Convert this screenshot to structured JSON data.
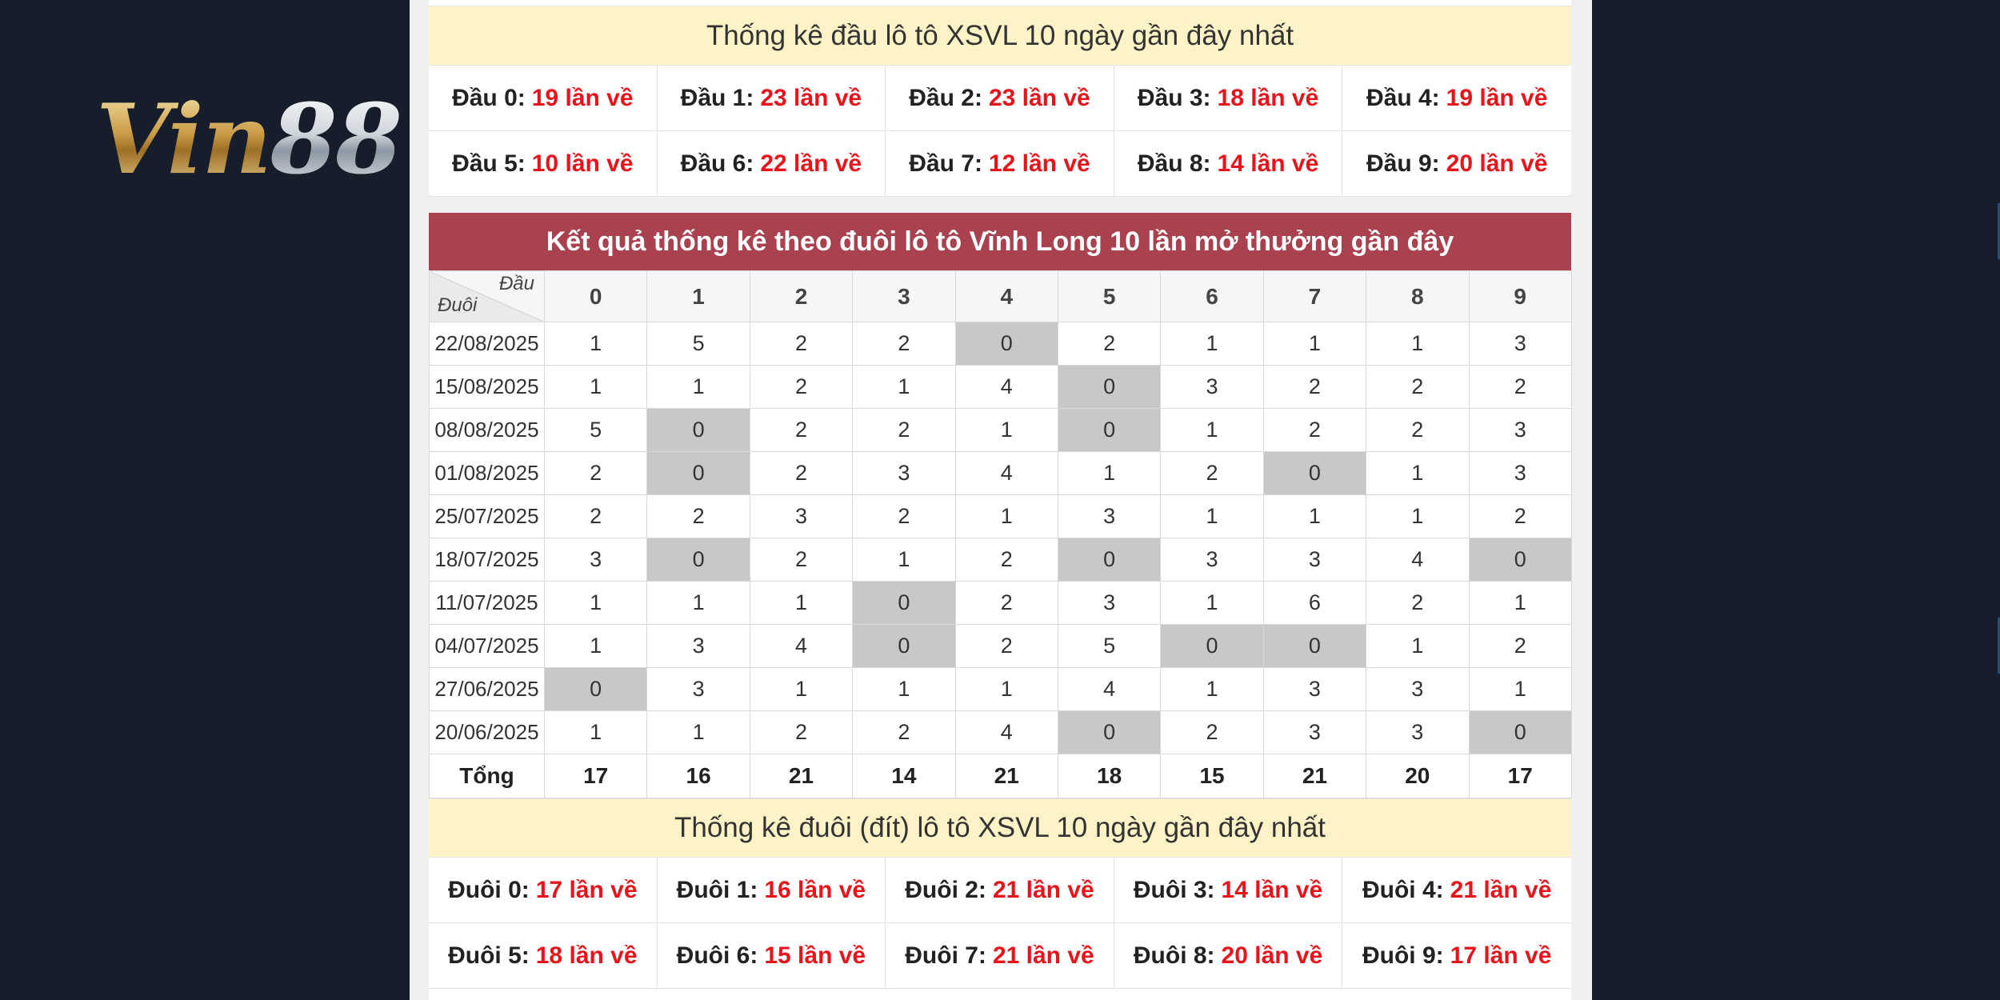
{
  "logo": {
    "text": "Vin",
    "number": "88"
  },
  "dau_stats": {
    "title": "Thống kê đầu lô tô XSVL 10 ngày gần đây nhất",
    "items": [
      {
        "label": "Đầu 0:",
        "value": "19 lần về"
      },
      {
        "label": "Đầu 1:",
        "value": "23 lần về"
      },
      {
        "label": "Đầu 2:",
        "value": "23 lần về"
      },
      {
        "label": "Đầu 3:",
        "value": "18 lần về"
      },
      {
        "label": "Đầu 4:",
        "value": "19 lần về"
      },
      {
        "label": "Đầu 5:",
        "value": "10 lần về"
      },
      {
        "label": "Đầu 6:",
        "value": "22 lần về"
      },
      {
        "label": "Đầu 7:",
        "value": "12 lần về"
      },
      {
        "label": "Đầu 8:",
        "value": "14 lần về"
      },
      {
        "label": "Đầu 9:",
        "value": "20 lần về"
      }
    ]
  },
  "duoi_table": {
    "title": "Kết quả thống kê theo đuôi lô tô Vĩnh Long 10 lần mở thưởng gần đây",
    "corner_dau": "Đầu",
    "corner_duoi": "Đuôi",
    "columns": [
      "0",
      "1",
      "2",
      "3",
      "4",
      "5",
      "6",
      "7",
      "8",
      "9"
    ],
    "rows": [
      {
        "date": "22/08/2025",
        "values": [
          "1",
          "5",
          "2",
          "2",
          "0",
          "2",
          "1",
          "1",
          "1",
          "3"
        ]
      },
      {
        "date": "15/08/2025",
        "values": [
          "1",
          "1",
          "2",
          "1",
          "4",
          "0",
          "3",
          "2",
          "2",
          "2"
        ]
      },
      {
        "date": "08/08/2025",
        "values": [
          "5",
          "0",
          "2",
          "2",
          "1",
          "0",
          "1",
          "2",
          "2",
          "3"
        ]
      },
      {
        "date": "01/08/2025",
        "values": [
          "2",
          "0",
          "2",
          "3",
          "4",
          "1",
          "2",
          "0",
          "1",
          "3"
        ]
      },
      {
        "date": "25/07/2025",
        "values": [
          "2",
          "2",
          "3",
          "2",
          "1",
          "3",
          "1",
          "1",
          "1",
          "2"
        ]
      },
      {
        "date": "18/07/2025",
        "values": [
          "3",
          "0",
          "2",
          "1",
          "2",
          "0",
          "3",
          "3",
          "4",
          "0"
        ]
      },
      {
        "date": "11/07/2025",
        "values": [
          "1",
          "1",
          "1",
          "0",
          "2",
          "3",
          "1",
          "6",
          "2",
          "1"
        ]
      },
      {
        "date": "04/07/2025",
        "values": [
          "1",
          "3",
          "4",
          "0",
          "2",
          "5",
          "0",
          "0",
          "1",
          "2"
        ]
      },
      {
        "date": "27/06/2025",
        "values": [
          "0",
          "3",
          "1",
          "1",
          "1",
          "4",
          "1",
          "3",
          "3",
          "1"
        ]
      },
      {
        "date": "20/06/2025",
        "values": [
          "1",
          "1",
          "2",
          "2",
          "4",
          "0",
          "2",
          "3",
          "3",
          "0"
        ]
      }
    ],
    "total_label": "Tổng",
    "totals": [
      "17",
      "16",
      "21",
      "14",
      "21",
      "18",
      "15",
      "21",
      "20",
      "17"
    ]
  },
  "duoi_stats": {
    "title": "Thống kê đuôi (đít) lô tô XSVL 10 ngày gần đây nhất",
    "items": [
      {
        "label": "Đuôi 0:",
        "value": "17 lần về"
      },
      {
        "label": "Đuôi 1:",
        "value": "16 lần về"
      },
      {
        "label": "Đuôi 2:",
        "value": "21 lần về"
      },
      {
        "label": "Đuôi 3:",
        "value": "14 lần về"
      },
      {
        "label": "Đuôi 4:",
        "value": "21 lần về"
      },
      {
        "label": "Đuôi 5:",
        "value": "18 lần về"
      },
      {
        "label": "Đuôi 6:",
        "value": "15 lần về"
      },
      {
        "label": "Đuôi 7:",
        "value": "21 lần về"
      },
      {
        "label": "Đuôi 8:",
        "value": "20 lần về"
      },
      {
        "label": "Đuôi 9:",
        "value": "17 lần về"
      }
    ]
  },
  "colors": {
    "header_red": "#a9414e",
    "highlight_red": "#e8141b",
    "yellow_band": "#fdf3c7",
    "zero_cell": "#c8c8c8",
    "background": "#161d2b"
  }
}
